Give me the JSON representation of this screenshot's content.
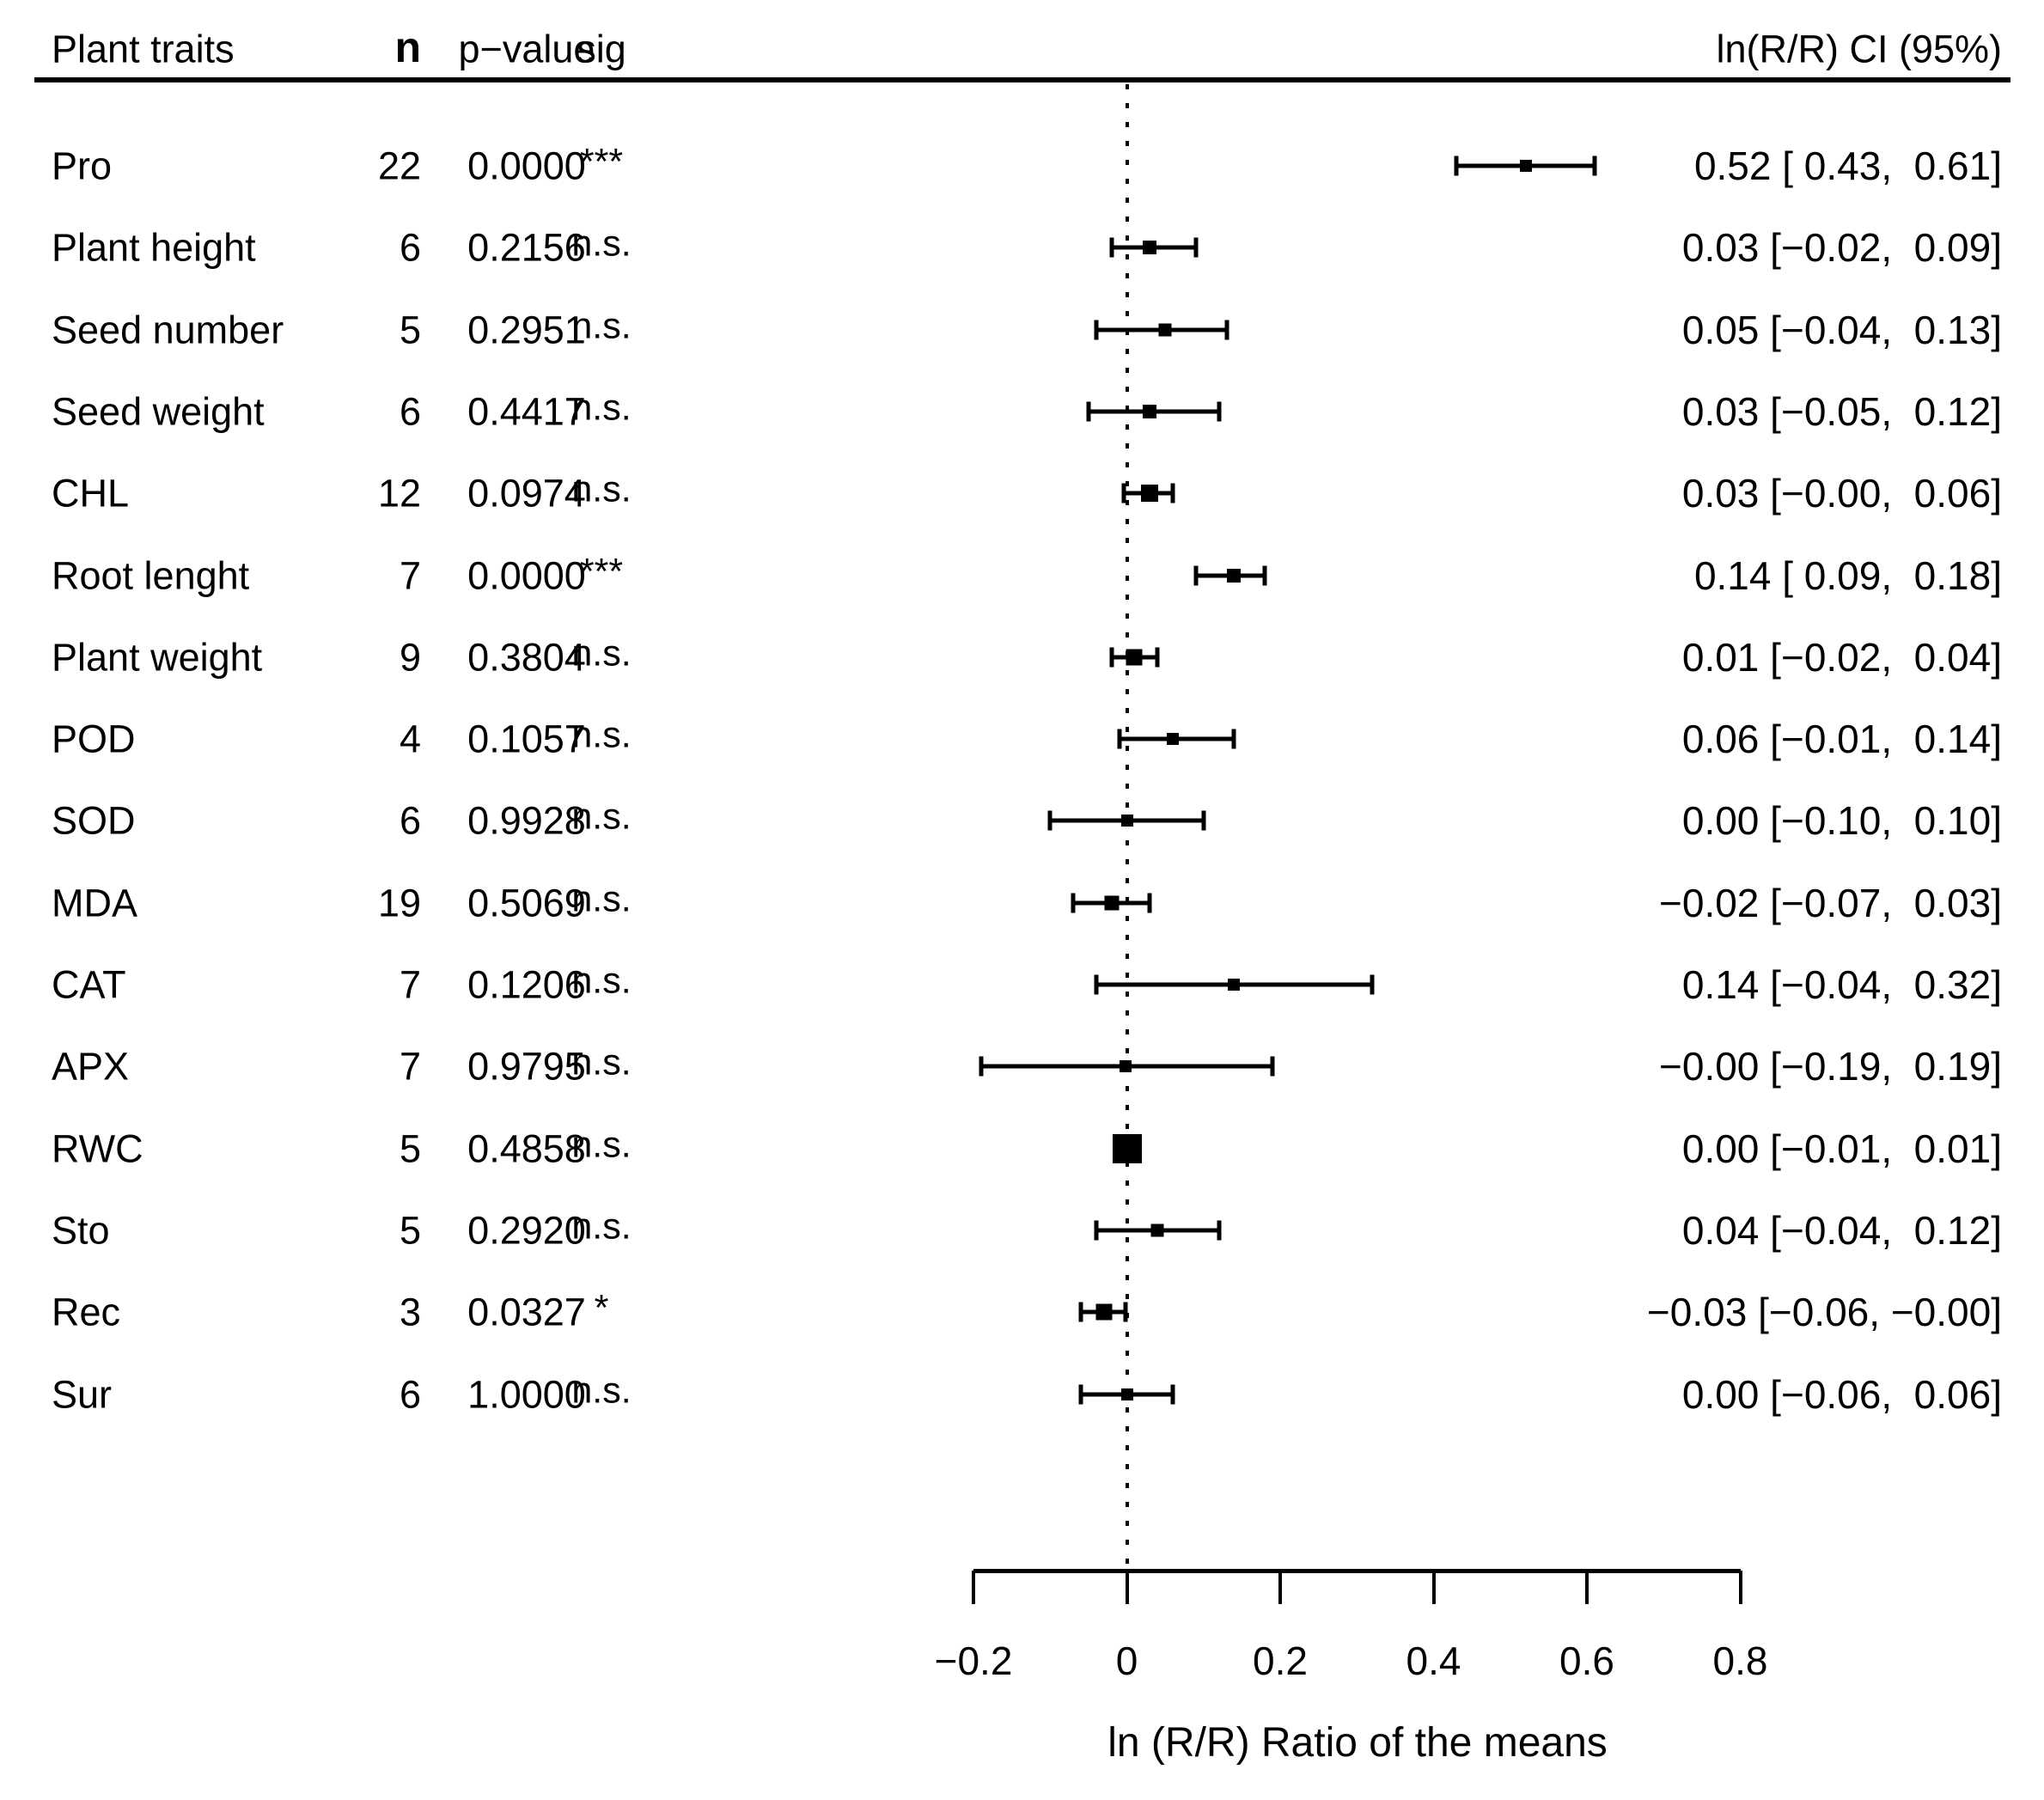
{
  "header": {
    "col_trait": "Plant traits",
    "col_n": "n",
    "col_p": "p−value",
    "col_sig": "sig",
    "col_ci": "ln(R/R) CI (95%)"
  },
  "axis": {
    "title": "ln (R/R) Ratio of the means",
    "tick_labels": [
      "−0.2",
      "0",
      "0.2",
      "0.4",
      "0.6",
      "0.8"
    ],
    "tick_values": [
      -0.2,
      0,
      0.2,
      0.4,
      0.6,
      0.8
    ],
    "xmin": -0.2,
    "xmax": 0.8
  },
  "colors": {
    "ink": "#000000",
    "background": "#ffffff"
  },
  "chart_data": {
    "type": "forest",
    "title": "",
    "xlabel": "ln (R/R) Ratio of the means",
    "zero_reference_line": 0,
    "xlim": [
      -0.2,
      0.8
    ],
    "xticks": [
      -0.2,
      0,
      0.2,
      0.4,
      0.6,
      0.8
    ],
    "grid": false,
    "rows": [
      {
        "label": "Pro",
        "n": 22,
        "p_value": "0.0000",
        "sig": "***",
        "estimate": 0.52,
        "ci_low": 0.43,
        "ci_high": 0.61,
        "ci_text": "0.52 [ 0.43,  0.61]",
        "marker_px": 14
      },
      {
        "label": "Plant height",
        "n": 6,
        "p_value": "0.2156",
        "sig": "n.s.",
        "estimate": 0.03,
        "ci_low": -0.02,
        "ci_high": 0.09,
        "ci_text": "0.03 [−0.02,  0.09]",
        "marker_px": 16
      },
      {
        "label": "Seed number",
        "n": 5,
        "p_value": "0.2951",
        "sig": "n.s.",
        "estimate": 0.05,
        "ci_low": -0.04,
        "ci_high": 0.13,
        "ci_text": "0.05 [−0.04,  0.13]",
        "marker_px": 15
      },
      {
        "label": "Seed weight",
        "n": 6,
        "p_value": "0.4417",
        "sig": "n.s.",
        "estimate": 0.03,
        "ci_low": -0.05,
        "ci_high": 0.12,
        "ci_text": "0.03 [−0.05,  0.12]",
        "marker_px": 16
      },
      {
        "label": "CHL",
        "n": 12,
        "p_value": "0.0974",
        "sig": "n.s.",
        "estimate": 0.03,
        "ci_low": -0.004,
        "ci_high": 0.06,
        "ci_text": "0.03 [−0.00,  0.06]",
        "marker_px": 20
      },
      {
        "label": "Root lenght",
        "n": 7,
        "p_value": "0.0000",
        "sig": "***",
        "estimate": 0.14,
        "ci_low": 0.09,
        "ci_high": 0.18,
        "ci_text": "0.14 [ 0.09,  0.18]",
        "marker_px": 16
      },
      {
        "label": "Plant weight",
        "n": 9,
        "p_value": "0.3804",
        "sig": "n.s.",
        "estimate": 0.01,
        "ci_low": -0.02,
        "ci_high": 0.04,
        "ci_text": "0.01 [−0.02,  0.04]",
        "marker_px": 19
      },
      {
        "label": "POD",
        "n": 4,
        "p_value": "0.1057",
        "sig": "n.s.",
        "estimate": 0.06,
        "ci_low": -0.01,
        "ci_high": 0.14,
        "ci_text": "0.06 [−0.01,  0.14]",
        "marker_px": 14
      },
      {
        "label": "SOD",
        "n": 6,
        "p_value": "0.9928",
        "sig": "n.s.",
        "estimate": 0.0,
        "ci_low": -0.1,
        "ci_high": 0.1,
        "ci_text": "0.00 [−0.10,  0.10]",
        "marker_px": 14
      },
      {
        "label": "MDA",
        "n": 19,
        "p_value": "0.5069",
        "sig": "n.s.",
        "estimate": -0.02,
        "ci_low": -0.07,
        "ci_high": 0.03,
        "ci_text": "−0.02 [−0.07,  0.03]",
        "marker_px": 17
      },
      {
        "label": "CAT",
        "n": 7,
        "p_value": "0.1206",
        "sig": "n.s.",
        "estimate": 0.14,
        "ci_low": -0.04,
        "ci_high": 0.32,
        "ci_text": "0.14 [−0.04,  0.32]",
        "marker_px": 14
      },
      {
        "label": "APX",
        "n": 7,
        "p_value": "0.9795",
        "sig": "n.s.",
        "estimate": -0.002,
        "ci_low": -0.19,
        "ci_high": 0.19,
        "ci_text": "−0.00 [−0.19,  0.19]",
        "marker_px": 14
      },
      {
        "label": "RWC",
        "n": 5,
        "p_value": "0.4858",
        "sig": "n.s.",
        "estimate": 0.0,
        "ci_low": -0.01,
        "ci_high": 0.01,
        "ci_text": "0.00 [−0.01,  0.01]",
        "marker_px": 34
      },
      {
        "label": "Sto",
        "n": 5,
        "p_value": "0.2920",
        "sig": "n.s.",
        "estimate": 0.04,
        "ci_low": -0.04,
        "ci_high": 0.12,
        "ci_text": "0.04 [−0.04,  0.12]",
        "marker_px": 15
      },
      {
        "label": "Rec",
        "n": 3,
        "p_value": "0.0327",
        "sig": "*",
        "estimate": -0.03,
        "ci_low": -0.06,
        "ci_high": -0.002,
        "ci_text": "−0.03 [−0.06, −0.00]",
        "marker_px": 19
      },
      {
        "label": "Sur",
        "n": 6,
        "p_value": "1.0000",
        "sig": "n.s.",
        "estimate": 0.0,
        "ci_low": -0.06,
        "ci_high": 0.06,
        "ci_text": "0.00 [−0.06,  0.06]",
        "marker_px": 14
      }
    ]
  }
}
